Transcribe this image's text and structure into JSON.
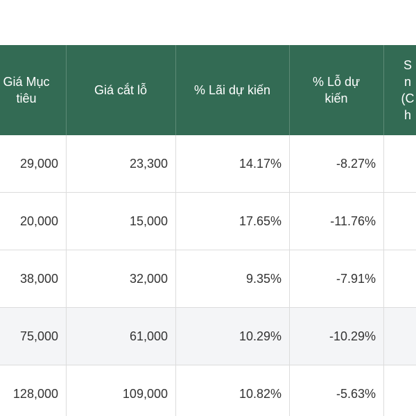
{
  "table": {
    "header": [
      "Giá Mục tiêu",
      "Giá cắt lỗ",
      "% Lãi dự kiến",
      "% Lỗ dự kiến",
      [
        "S",
        "n",
        "(C",
        "h"
      ]
    ],
    "rows": [
      [
        "29,000",
        "23,300",
        "14.17%",
        "-8.27%"
      ],
      [
        "20,000",
        "15,000",
        "17.65%",
        "-11.76%"
      ],
      [
        "38,000",
        "32,000",
        "9.35%",
        "-7.91%"
      ],
      [
        "75,000",
        "61,000",
        "10.29%",
        "-10.29%"
      ],
      [
        "128,000",
        "109,000",
        "10.82%",
        "-5.63%"
      ]
    ]
  }
}
